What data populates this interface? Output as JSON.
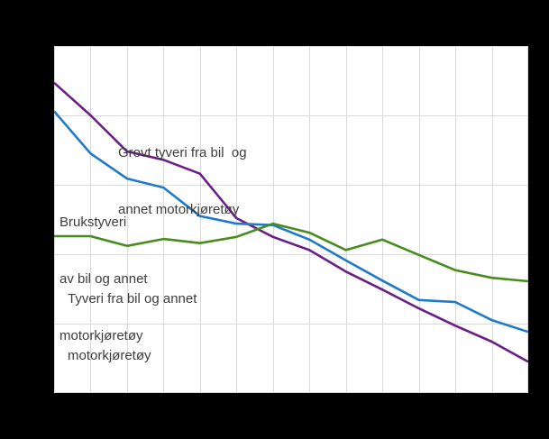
{
  "figure": {
    "background_color": "#000000",
    "plot_background_color": "#ffffff",
    "gridline_color": "#d9d9d9",
    "annotation_text_color": "#3d3d3d"
  },
  "chart_data": {
    "type": "line",
    "title": "",
    "x_axis": {
      "tick_labels_visible": false,
      "points": 14,
      "gridlines": 14
    },
    "y_axis": {
      "tick_labels_visible": false,
      "gridlines": 6,
      "ylim": [
        0,
        5
      ],
      "unit_note": "axis tick labels are not visible in the image; values are estimated in gridline units (bottom gridline = 0, top gridline = 5)"
    },
    "grid": "on",
    "legend_position": "in-plot text annotations",
    "series": [
      {
        "name": "Grovt tyveri fra bil og annet motorkjøretøy",
        "color": "#6a1f87",
        "values": [
          4.47,
          4.0,
          3.48,
          3.36,
          3.16,
          2.52,
          2.25,
          2.06,
          1.75,
          1.49,
          1.22,
          0.97,
          0.74,
          0.45
        ]
      },
      {
        "name": "Brukstyveri av bil og annet motorkjøretøy",
        "color": "#1f7bc9",
        "values": [
          4.06,
          3.45,
          3.09,
          2.96,
          2.55,
          2.44,
          2.42,
          2.21,
          1.91,
          1.62,
          1.34,
          1.31,
          1.05,
          0.88
        ]
      },
      {
        "name": "Tyveri fra bil og annet motorkjøretøy",
        "color": "#478c1d",
        "values": [
          2.26,
          2.26,
          2.12,
          2.22,
          2.16,
          2.25,
          2.44,
          2.31,
          2.06,
          2.21,
          1.99,
          1.77,
          1.66,
          1.61
        ]
      }
    ],
    "annotations": [
      {
        "series": "Grovt tyveri fra bil og annet motorkjøretøy",
        "line1": "Grovt tyveri fra bil  og",
        "line2": "annet motorkjøretøy"
      },
      {
        "series": "Brukstyveri av bil og annet motorkjøretøy",
        "line1": "Brukstyveri",
        "line2": "av bil og annet",
        "line3": "motorkjøretøy"
      },
      {
        "series": "Tyveri fra bil og annet motorkjøretøy",
        "line1": "Tyveri fra bil og annet",
        "line2": "motorkjøretøy"
      }
    ]
  }
}
